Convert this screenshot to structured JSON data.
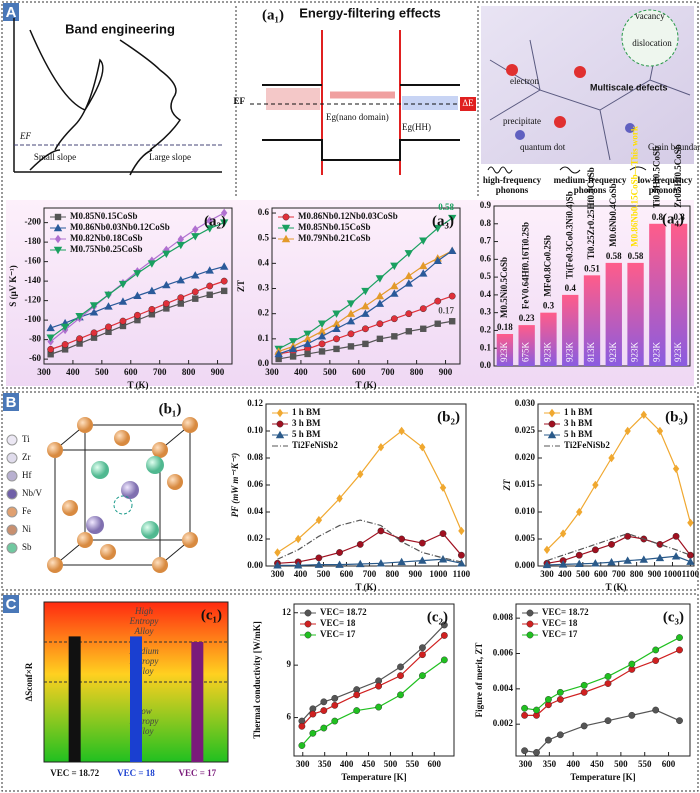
{
  "sections": [
    "A",
    "B",
    "C"
  ],
  "band_engineering": {
    "title": "Band engineering",
    "ef": "EF",
    "small": "Small slope",
    "large": "Large slope"
  },
  "energy_filtering": {
    "label": "(a₁)",
    "title": "Energy-filtering effects",
    "ef": "EF",
    "eg_nano": "Eg(nano domain)",
    "eg_hh": "Eg(HH)",
    "delta_e": "ΔE"
  },
  "multiscale": {
    "title": "Multiscale defects",
    "electron": "electron",
    "vacancy": "vacancy",
    "dislocation": "dislocation",
    "precipitate": "precipitate",
    "quantum_dot": "quantum dot",
    "grain_boundary": "Grain boundary",
    "phonons": [
      [
        "high-frequency",
        "phonons"
      ],
      [
        "medium-frequency",
        "phonons"
      ],
      [
        "low-frequency",
        "phonons"
      ]
    ]
  },
  "crystal": {
    "label": "(b₁)",
    "atoms": [
      "Ti",
      "Zr",
      "Hf",
      "Nb/V",
      "Fe",
      "Ni",
      "Sb"
    ]
  },
  "chart_data": [
    {
      "type": "line",
      "label": "(a₂)",
      "x_label": "T (K)",
      "y_label": "S (μV K⁻¹)",
      "legend": "upper left",
      "x": [
        323,
        373,
        423,
        473,
        523,
        573,
        623,
        673,
        723,
        773,
        823,
        873,
        923
      ],
      "xlim": [
        300,
        950
      ],
      "xticks": [
        300,
        400,
        500,
        600,
        700,
        800,
        900
      ],
      "ylim": [
        -55,
        -215
      ],
      "yticks": [
        -60,
        -80,
        -100,
        -120,
        -140,
        -160,
        -180,
        -200
      ],
      "series": [
        {
          "name": "M0.85N0.15CoSb",
          "color": "#555555",
          "marker": "square",
          "values": [
            -65,
            -70,
            -76,
            -82,
            -88,
            -94,
            -100,
            -106,
            -112,
            -117,
            -122,
            -126,
            -130
          ]
        },
        {
          "name": "M0.86Nb0.03Nb0.12CoSb",
          "color": "#2a5a9a",
          "marker": "triangle",
          "values": [
            -92,
            -97,
            -103,
            -108,
            -114,
            -119,
            -125,
            -130,
            -136,
            -141,
            -146,
            -151,
            -155
          ]
        },
        {
          "name": "M0.82Nb0.18CoSb",
          "color": "#b070d0",
          "marker": "diamond",
          "values": [
            -78,
            -90,
            -102,
            -114,
            -126,
            -138,
            -150,
            -161,
            -172,
            -183,
            -193,
            -202,
            -210
          ]
        },
        {
          "name": "M0.75Nb0.25CoSb",
          "color": "#1aa060",
          "marker": "triangle-down",
          "values": [
            -82,
            -93,
            -104,
            -115,
            -126,
            -137,
            -148,
            -158,
            -168,
            -177,
            -186,
            -194,
            -200
          ]
        },
        {
          "color": "#e0303a",
          "marker": "circle",
          "values": [
            -70,
            -75,
            -81,
            -87,
            -93,
            -99,
            -105,
            -111,
            -117,
            -123,
            -129,
            -135,
            -140
          ]
        }
      ]
    },
    {
      "type": "line",
      "label": "(a₃)",
      "x_label": "T (K)",
      "y_label": "ZT",
      "legend": "upper left",
      "annotations": [
        "0.58",
        "0.17"
      ],
      "x": [
        323,
        373,
        423,
        473,
        523,
        573,
        623,
        673,
        723,
        773,
        823,
        873,
        923
      ],
      "xlim": [
        300,
        950
      ],
      "xticks": [
        300,
        400,
        500,
        600,
        700,
        800,
        900
      ],
      "ylim": [
        0,
        0.62
      ],
      "yticks": [
        {
          "value": 0,
          "label": "0.0"
        },
        0.1,
        0.2,
        0.3,
        0.4,
        0.5,
        0.6
      ],
      "series": [
        {
          "name": "M0.86Nb0.12Nb0.03CoSb",
          "color": "#e0303a",
          "marker": "circle",
          "values": [
            0.04,
            0.05,
            0.06,
            0.08,
            0.1,
            0.12,
            0.14,
            0.16,
            0.18,
            0.2,
            0.22,
            0.25,
            0.27
          ]
        },
        {
          "name": "M0.85Nb0.15CoSb",
          "color": "#1aa060",
          "marker": "triangle-down",
          "values": [
            0.06,
            0.09,
            0.12,
            0.16,
            0.2,
            0.24,
            0.29,
            0.34,
            0.39,
            0.44,
            0.49,
            0.54,
            0.58
          ]
        },
        {
          "name": "M0.79Nb0.21CoSb",
          "color": "#e39a2a",
          "marker": "triangle",
          "values": [
            0.05,
            0.07,
            0.1,
            0.13,
            0.16,
            0.2,
            0.23,
            0.27,
            0.31,
            0.35,
            0.39,
            0.42,
            0.45
          ]
        },
        {
          "color": "#555555",
          "marker": "square",
          "values": [
            0.02,
            0.03,
            0.04,
            0.05,
            0.06,
            0.07,
            0.08,
            0.1,
            0.11,
            0.13,
            0.14,
            0.16,
            0.17
          ]
        },
        {
          "color": "#2a5a9a",
          "marker": "triangle",
          "values": [
            0.04,
            0.06,
            0.08,
            0.11,
            0.14,
            0.17,
            0.2,
            0.24,
            0.28,
            0.32,
            0.36,
            0.41,
            0.45
          ]
        }
      ]
    },
    {
      "type": "bar",
      "label": "(a₄)",
      "colors": [
        "#ff5c8a",
        "#8a5ce0"
      ],
      "categories": [
        "M0.5Ni0.5CoSb",
        "FeV0.64Hf0.16Ti0.2Sb",
        "MFe0.8Co0.2Sb",
        "Ti(Fe0.3Co0.3Ni0.4)Sb",
        "Ti0.25Zr0.25Hf0.5CoSb",
        "M0.6Nb0.4CoSb",
        "M0.86Nb0.15CoSb—This work",
        "Ti0.5Hf0.5CoSb",
        "Zr0.5Hf0.5CoSb"
      ],
      "values": [
        0.18,
        0.23,
        0.3,
        0.4,
        0.51,
        0.58,
        0.58,
        0.8,
        0.8
      ],
      "bar_labels": [
        "923K",
        "675K",
        "923K",
        "923K",
        "813K",
        "923K",
        "923K",
        "923K",
        "923K"
      ],
      "ylim": [
        0,
        0.9
      ],
      "yticks": [
        {
          "value": 0,
          "label": "0.0"
        },
        0.1,
        0.2,
        0.3,
        0.4,
        0.5,
        0.6,
        0.7,
        0.8,
        0.9
      ]
    },
    {
      "type": "line",
      "label": "(b₂)",
      "x_label": "T (K)",
      "y_label": "PF (mW m⁻¹K⁻²)",
      "legend": "upper left",
      "x": [
        300,
        390,
        480,
        570,
        660,
        750,
        840,
        930,
        1020,
        1100
      ],
      "xlim": [
        250,
        1120
      ],
      "xticks": [
        300,
        400,
        500,
        600,
        700,
        800,
        900,
        1000,
        1100
      ],
      "ylim": [
        0,
        0.12
      ],
      "yticks": [
        {
          "value": 0,
          "label": "0.00"
        },
        {
          "value": 0.02,
          "label": "0.02"
        },
        {
          "value": 0.04,
          "label": "0.04"
        },
        {
          "value": 0.06,
          "label": "0.06"
        },
        {
          "value": 0.08,
          "label": "0.08"
        },
        {
          "value": 0.1,
          "label": "0.10"
        },
        {
          "value": 0.12,
          "label": "0.12"
        }
      ],
      "series": [
        {
          "name": "1 h BM",
          "color": "#f0a830",
          "marker": "diamond",
          "values": [
            0.01,
            0.02,
            0.034,
            0.05,
            0.068,
            0.088,
            0.1,
            0.088,
            0.058,
            0.026
          ]
        },
        {
          "name": "3 h BM",
          "color": "#a01020",
          "marker": "circle",
          "values": [
            0.002,
            0.003,
            0.006,
            0.01,
            0.016,
            0.026,
            0.02,
            0.017,
            0.024,
            0.008
          ]
        },
        {
          "name": "5 h BM",
          "color": "#2a5a8a",
          "marker": "triangle",
          "values": [
            0.0005,
            0.0005,
            0.001,
            0.001,
            0.0015,
            0.002,
            0.003,
            0.004,
            0.005,
            0.002
          ]
        },
        {
          "name": "Ti2FeNiSb2",
          "color": "#555555",
          "marker": "none",
          "dash": "6 2 1 2",
          "values": [
            0.005,
            0.012,
            0.022,
            0.03,
            0.034,
            0.03,
            0.018,
            0.01,
            0.006,
            0.003
          ]
        }
      ]
    },
    {
      "type": "line",
      "label": "(b₃)",
      "x_label": "T (K)",
      "y_label": "ZT",
      "legend": "upper left",
      "x": [
        300,
        390,
        480,
        570,
        660,
        750,
        840,
        930,
        1020,
        1100
      ],
      "xlim": [
        250,
        1120
      ],
      "xticks": [
        300,
        400,
        500,
        600,
        700,
        800,
        900,
        1000,
        1100
      ],
      "ylim": [
        0,
        0.03
      ],
      "yticks": [
        {
          "value": 0,
          "label": "0.000"
        },
        {
          "value": 0.005,
          "label": "0.005"
        },
        {
          "value": 0.01,
          "label": "0.010"
        },
        {
          "value": 0.015,
          "label": "0.015"
        },
        {
          "value": 0.02,
          "label": "0.020"
        },
        {
          "value": 0.025,
          "label": "0.025"
        },
        {
          "value": 0.03,
          "label": "0.030"
        }
      ],
      "series": [
        {
          "name": "1 h BM",
          "color": "#f0a830",
          "marker": "diamond",
          "values": [
            0.003,
            0.006,
            0.01,
            0.015,
            0.02,
            0.025,
            0.028,
            0.025,
            0.018,
            0.008
          ]
        },
        {
          "name": "3 h BM",
          "color": "#a01020",
          "marker": "circle",
          "values": [
            0.0005,
            0.001,
            0.002,
            0.003,
            0.004,
            0.0055,
            0.005,
            0.004,
            0.0055,
            0.002
          ]
        },
        {
          "name": "5 h BM",
          "color": "#2a5a8a",
          "marker": "triangle",
          "values": [
            0.0002,
            0.0003,
            0.0004,
            0.0005,
            0.0007,
            0.001,
            0.0012,
            0.0015,
            0.0018,
            0.0008
          ]
        },
        {
          "name": "Ti2FeNiSb2",
          "color": "#555555",
          "marker": "none",
          "dash": "6 2 1 2",
          "values": [
            0.001,
            0.002,
            0.003,
            0.004,
            0.005,
            0.006,
            0.005,
            0.004,
            0.003,
            0.002
          ]
        }
      ]
    },
    {
      "type": "bar",
      "label": "(c₁)",
      "y_label": "ΔSconf×R",
      "categories": [
        "VEC = 18.72",
        "VEC = 18",
        "VEC = 17"
      ],
      "values": [
        1.57,
        1.57,
        1.5
      ],
      "colors": [
        "#111111",
        "#1a3fd0",
        "#7a1a7a"
      ],
      "ylim": [
        0,
        2
      ],
      "reference_lines": [
        1,
        1.5
      ],
      "region_labels": [
        [
          "High",
          "Entropy",
          "Alloy"
        ],
        [
          "Medium",
          "Entropy",
          "Alloy"
        ],
        [
          "Low",
          "Entropy",
          "Alloy"
        ]
      ]
    },
    {
      "type": "line",
      "label": "(c₂)",
      "x_label": "Temperature [K]",
      "y_label": "Thermal conductivity [W/mK]",
      "legend": "upper left",
      "x": [
        298,
        323,
        348,
        373,
        423,
        473,
        523,
        573,
        623
      ],
      "xlim": [
        280,
        645
      ],
      "xticks": [
        300,
        350,
        400,
        450,
        500,
        550,
        600
      ],
      "ylim": [
        3.8,
        12.5
      ],
      "yticks": [
        6,
        9,
        12
      ],
      "series": [
        {
          "name": "VEC= 18.72",
          "color": "#555555",
          "marker": "circle",
          "values": [
            5.8,
            6.5,
            6.9,
            7.1,
            7.6,
            8.1,
            8.9,
            10,
            11.3
          ]
        },
        {
          "name": "VEC= 18",
          "color": "#d02020",
          "marker": "circle",
          "values": [
            5.5,
            6.2,
            6.4,
            6.7,
            7.3,
            7.8,
            8.4,
            9.6,
            10.7
          ]
        },
        {
          "name": "VEC= 17",
          "color": "#20c020",
          "marker": "circle",
          "values": [
            4.4,
            5.1,
            5.4,
            5.8,
            6.4,
            6.6,
            7.3,
            8.4,
            9.3
          ]
        }
      ]
    },
    {
      "type": "line",
      "label": "(c₃)",
      "x_label": "Temperature [K]",
      "y_label": "Figure of merit, ZT",
      "legend": "upper left",
      "x": [
        298,
        323,
        348,
        373,
        423,
        473,
        523,
        573,
        623
      ],
      "xlim": [
        280,
        645
      ],
      "xticks": [
        300,
        350,
        400,
        450,
        500,
        550,
        600
      ],
      "ylim": [
        0.0002,
        0.0088
      ],
      "yticks": [
        0.002,
        0.004,
        0.006,
        0.008
      ],
      "series": [
        {
          "name": "VEC= 18.72",
          "color": "#555555",
          "marker": "circle",
          "values": [
            0.0005,
            0.0004,
            0.0011,
            0.0014,
            0.0019,
            0.0022,
            0.0025,
            0.0028,
            0.0022
          ]
        },
        {
          "name": "VEC= 18",
          "color": "#d02020",
          "marker": "circle",
          "values": [
            0.0025,
            0.0025,
            0.0031,
            0.0034,
            0.0038,
            0.0043,
            0.0051,
            0.0056,
            0.0062
          ]
        },
        {
          "name": "VEC= 17",
          "color": "#20c020",
          "marker": "circle",
          "values": [
            0.0029,
            0.0028,
            0.0034,
            0.0038,
            0.0042,
            0.0047,
            0.0054,
            0.0062,
            0.0069
          ]
        }
      ]
    }
  ]
}
